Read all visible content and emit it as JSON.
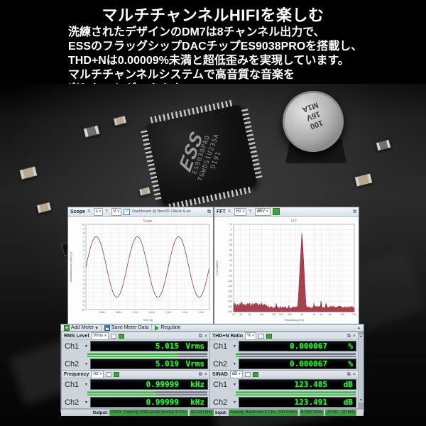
{
  "header": {
    "title": "マルチチャンネルHIFIを楽しむ",
    "lines": [
      "洗練されたデザインのDM7は8チャンネル出力で、",
      "ESSのフラッグシップDACチップES9038PROを搭載し、",
      "THD+Nは0.00009%未満と超低歪みを実現しています。",
      "マルチチャンネルシステムで高音質な音楽を",
      "楽しむことができます。"
    ]
  },
  "photo": {
    "chip_logo": "ESS",
    "chip_part": "ES9038PRO",
    "chip_code": "TGWDS1U235A",
    "chip_rev": "D191",
    "cap_line1": "100",
    "cap_line2": "16V",
    "cap_line3": "M1A",
    "res_label": "4120"
  },
  "icons": {
    "popout": "⧉",
    "close": "×",
    "combo_caret": "▾",
    "row_caret": "▼",
    "scroll_up": "▲",
    "scroll_down": "▼",
    "add_plus": "+",
    "check": "✓"
  },
  "scope_window": {
    "name": "Scope",
    "x_axis_label": "X:",
    "x_unit": "s",
    "y_axis_label": "Y:",
    "y_unit": "V",
    "session": "Dashboard @ Bw=20-19kHz A-wt"
  },
  "fft_window": {
    "name": "FFT",
    "x_axis_label": "X:",
    "x_unit": "Hz",
    "y_axis_label": "Y:",
    "y_unit": "dBV"
  },
  "chart_data": [
    {
      "type": "line",
      "title": "Scope",
      "xlabel": "Time (s)",
      "ylabel": "Instantaneous Level (V)",
      "xlim_s": [
        0,
        0.003
      ],
      "x_tick_values_s": [
        0.0004,
        0.0008,
        0.0012,
        0.0016,
        0.002,
        0.0024,
        0.0028
      ],
      "x_tick_labels": [
        "400u",
        "800u",
        "1.2m",
        "1.6m",
        "2.0m",
        "2.4m",
        "2.8m"
      ],
      "ylim": [
        -10,
        10
      ],
      "y_tick_step": 1,
      "grid": true,
      "signal": {
        "shape": "sine",
        "frequency_hz": 1000,
        "amplitude_v_peak": 7.09,
        "cycles_shown": 3
      },
      "trace_color": "#8e3b47"
    },
    {
      "type": "line",
      "title": "FFT",
      "xlabel": "Frequency (Hz)",
      "ylabel": "Level (dBV)",
      "x_scale": "log",
      "xlim_hz": [
        20,
        20000
      ],
      "x_tick_values_hz": [
        20,
        30,
        50,
        100,
        200,
        300,
        500,
        1000,
        2000,
        3000,
        5000,
        10000,
        20000
      ],
      "x_tick_labels": [
        "20",
        "30",
        "50",
        "100",
        "200",
        "300",
        "500",
        "1k",
        "2k",
        "3k",
        "5k",
        "10k",
        "20k"
      ],
      "ylim_db": [
        -160,
        10
      ],
      "y_tick_step": 10,
      "grid": true,
      "fundamental": {
        "freq_hz": 1000,
        "level_db": 0
      },
      "harmonics": [
        {
          "freq_hz": 2000,
          "level_db": -138
        },
        {
          "freq_hz": 3000,
          "level_db": -134
        },
        {
          "freq_hz": 4000,
          "level_db": -137
        },
        {
          "freq_hz": 5000,
          "level_db": -147
        }
      ],
      "noise_floor_db": -154,
      "trace_color": "#9b2537"
    }
  ],
  "meters": {
    "toolbar": {
      "add": "Add Meter",
      "save": "Save Meter Data",
      "regulate": "Regulate"
    },
    "panels": [
      {
        "title": "RMS Level",
        "unit": "Vrms",
        "bar_fill": 0.76,
        "channels": [
          {
            "label": "Ch1",
            "value": "5.015",
            "unit": "Vrms"
          },
          {
            "label": "Ch2",
            "value": "5.019",
            "unit": "Vrms"
          }
        ]
      },
      {
        "title": "THD+N Ratio",
        "unit": "%",
        "bar_fill": 0.03,
        "channels": [
          {
            "label": "Ch1",
            "value": "0.000067",
            "unit": "%"
          },
          {
            "label": "Ch2",
            "value": "0.000067",
            "unit": "%"
          }
        ]
      },
      {
        "title": "Frequency",
        "unit": "Hz",
        "bar_fill": 0.57,
        "channels": [
          {
            "label": "Ch1",
            "value": "0.99999",
            "unit": "kHz"
          },
          {
            "label": "Ch2",
            "value": "0.99999",
            "unit": "kHz"
          }
        ]
      },
      {
        "title": "SINAD",
        "unit": "dB",
        "bar_fill": 0.99,
        "channels": [
          {
            "label": "Ch1",
            "value": "123.485",
            "unit": "dB"
          },
          {
            "label": "Ch2",
            "value": "123.491",
            "unit": "dB"
          }
        ]
      }
    ],
    "status": {
      "output_label": "Output:",
      "output_segments": [
        "ASIO, Topping USB Audio Device 8 Chs",
        "44.100 kHz"
      ],
      "input_label": "Input:",
      "input_segments": [
        "Analog, Balanced 2 Chs, 200 kohm",
        "5.000 Vrms",
        "20 Hz - 20 kHz"
      ]
    }
  },
  "colors": {
    "meter_green": "#35ef35",
    "scope_trace": "#8e3b47",
    "fft_trace": "#9b2537",
    "segment_green": "#3f9b46"
  }
}
